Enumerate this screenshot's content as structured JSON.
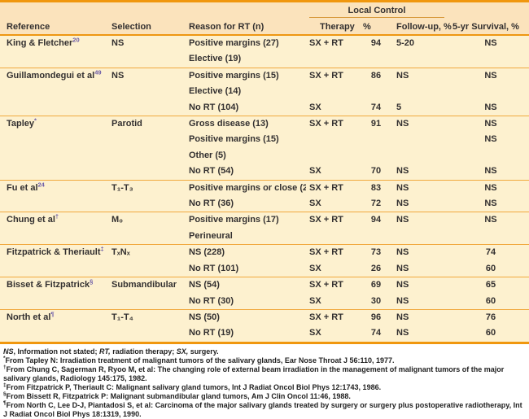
{
  "table": {
    "group_header": "Local Control",
    "columns": {
      "reference": "Reference",
      "selection": "Selection",
      "reason": "Reason for RT (n)",
      "therapy": "Therapy",
      "pct": "%",
      "followup": "Follow-up, %",
      "survival": "5-yr Survival, %"
    },
    "groups": [
      {
        "reference": "King & Fletcher",
        "mark": "20",
        "selection": "NS",
        "rows": [
          {
            "reason": "Positive margins (27)",
            "therapy": "SX + RT",
            "pct": "94",
            "followup": "5-20",
            "survival": "NS"
          },
          {
            "reason": "Elective (19)",
            "therapy": "",
            "pct": "",
            "followup": "",
            "survival": ""
          }
        ]
      },
      {
        "reference": "Guillamondegui et al",
        "mark": "49",
        "selection": "NS",
        "rows": [
          {
            "reason": "Positive margins (15)",
            "therapy": "SX + RT",
            "pct": "86",
            "followup": "NS",
            "survival": "NS"
          },
          {
            "reason": "Elective (14)",
            "therapy": "",
            "pct": "",
            "followup": "",
            "survival": ""
          },
          {
            "reason": "No RT (104)",
            "therapy": "SX",
            "pct": "74",
            "followup": "5",
            "survival": "NS"
          }
        ]
      },
      {
        "reference": "Tapley",
        "mark": "*",
        "selection": "Parotid",
        "rows": [
          {
            "reason": "Gross disease (13)",
            "therapy": "SX + RT",
            "pct": "91",
            "followup": "NS",
            "survival": "NS"
          },
          {
            "reason": "Positive margins (15)",
            "therapy": "",
            "pct": "",
            "followup": "",
            "survival": "NS"
          },
          {
            "reason": "Other (5)",
            "therapy": "",
            "pct": "",
            "followup": "",
            "survival": ""
          },
          {
            "reason": "No RT (54)",
            "therapy": "SX",
            "pct": "70",
            "followup": "NS",
            "survival": "NS"
          }
        ]
      },
      {
        "reference": "Fu et al",
        "mark": "24",
        "selection": "T₁-T₃",
        "rows": [
          {
            "reason": "Positive margins or close (23)",
            "therapy": "SX + RT",
            "pct": "83",
            "followup": "NS",
            "survival": "NS"
          },
          {
            "reason": "No RT (36)",
            "therapy": "SX",
            "pct": "72",
            "followup": "NS",
            "survival": "NS"
          }
        ]
      },
      {
        "reference": "Chung et al",
        "mark": "†",
        "selection": "M₀",
        "rows": [
          {
            "reason": "Positive margins (17)",
            "therapy": "SX + RT",
            "pct": "94",
            "followup": "NS",
            "survival": "NS"
          },
          {
            "reason": "Perineural",
            "therapy": "",
            "pct": "",
            "followup": "",
            "survival": ""
          }
        ]
      },
      {
        "reference": "Fitzpatrick & Theriault",
        "mark": "‡",
        "selection": "TₓNₓ",
        "rows": [
          {
            "reason": "NS (228)",
            "therapy": "SX + RT",
            "pct": "73",
            "followup": "NS",
            "survival": "74"
          },
          {
            "reason": "No RT (101)",
            "therapy": "SX",
            "pct": "26",
            "followup": "NS",
            "survival": "60"
          }
        ]
      },
      {
        "reference": "Bisset & Fitzpatrick",
        "mark": "§",
        "selection": "Submandibular",
        "rows": [
          {
            "reason": "NS (54)",
            "therapy": "SX + RT",
            "pct": "69",
            "followup": "NS",
            "survival": "65"
          },
          {
            "reason": "No RT (30)",
            "therapy": "SX",
            "pct": "30",
            "followup": "NS",
            "survival": "60"
          }
        ]
      },
      {
        "reference": "North et al",
        "mark": "¶",
        "selection": "T₁-T₄",
        "rows": [
          {
            "reason": "NS (50)",
            "therapy": "SX + RT",
            "pct": "96",
            "followup": "NS",
            "survival": "76"
          },
          {
            "reason": "No RT (19)",
            "therapy": "SX",
            "pct": "74",
            "followup": "NS",
            "survival": "60"
          }
        ]
      }
    ]
  },
  "footnotes": [
    {
      "marker": "",
      "segments": [
        {
          "text": "NS",
          "italic": true
        },
        {
          "text": ", Information not stated; ",
          "italic": false
        },
        {
          "text": "RT,",
          "italic": true
        },
        {
          "text": " radiation therapy; ",
          "italic": false
        },
        {
          "text": "SX,",
          "italic": true
        },
        {
          "text": " surgery.",
          "italic": false
        }
      ]
    },
    {
      "marker": "*",
      "text": "From Tapley N: Irradiation treatment of malignant tumors of the salivary glands, Ear Nose Throat J 56:110, 1977."
    },
    {
      "marker": "†",
      "text": "From Chung C, Sagerman R, Ryoo M, et al: The changing role of external beam irradiation in the management of malignant tumors of the major salivary glands, Radiology 145:175, 1982."
    },
    {
      "marker": "‡",
      "text": "From Fitzpatrick P, Theriault C: Malignant salivary gland tumors, Int J Radiat Oncol Biol Phys 12:1743, 1986."
    },
    {
      "marker": "§",
      "text": "From Bissett R, Fitzpatrick P: Malignant submandibular gland tumors, Am J Clin Oncol 11:46, 1988."
    },
    {
      "marker": "¶",
      "text": "From North C, Lee D-J, Piantadosi S, et al: Carcinoma of the major salivary glands treated by surgery or surgery plus postoperative radiotherapy, Int J Radiat Oncol Biol Phys 18:1319, 1990."
    }
  ],
  "colors": {
    "accent_orange": "#F0970E",
    "group_rule_orange": "#F1A93E",
    "header_bg": "#FBE3BC",
    "body_bg": "#FDF1CF",
    "reference_mark_purple": "#6B5BA8",
    "text": "#333030"
  }
}
